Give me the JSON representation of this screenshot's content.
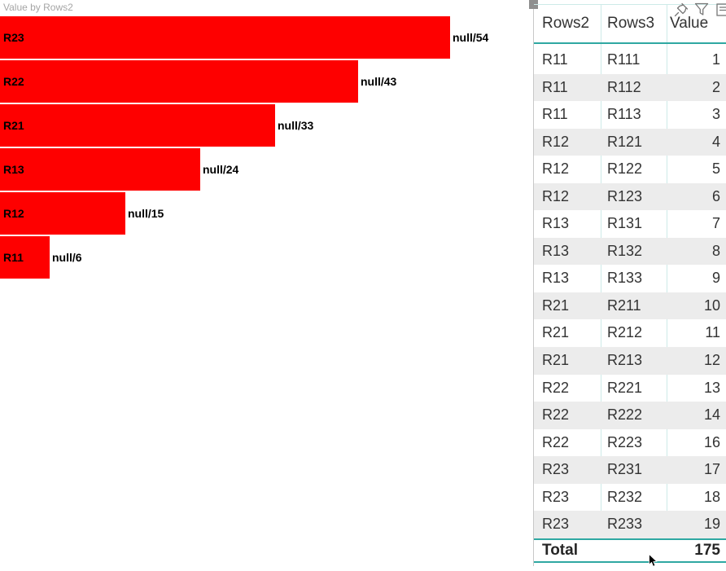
{
  "chart": {
    "title": "Value by Rows2"
  },
  "chart_data": {
    "type": "bar",
    "orientation": "horizontal",
    "title": "Value by Rows2",
    "categories": [
      "R23",
      "R22",
      "R21",
      "R13",
      "R12",
      "R11"
    ],
    "values": [
      54,
      43,
      33,
      24,
      15,
      6
    ],
    "data_labels": [
      "null/54",
      "null/43",
      "null/33",
      "null/24",
      "null/15",
      "null/6"
    ],
    "xlabel": "",
    "ylabel": "Rows2",
    "xlim": [
      0,
      64
    ],
    "grid": false,
    "legend": "none",
    "bar_color": "#FE0000"
  },
  "table": {
    "columns": [
      "Rows2",
      "Rows3",
      "Value"
    ],
    "rows": [
      [
        "R11",
        "R111",
        1
      ],
      [
        "R11",
        "R112",
        2
      ],
      [
        "R11",
        "R113",
        3
      ],
      [
        "R12",
        "R121",
        4
      ],
      [
        "R12",
        "R122",
        5
      ],
      [
        "R12",
        "R123",
        6
      ],
      [
        "R13",
        "R131",
        7
      ],
      [
        "R13",
        "R132",
        8
      ],
      [
        "R13",
        "R133",
        9
      ],
      [
        "R21",
        "R211",
        10
      ],
      [
        "R21",
        "R212",
        11
      ],
      [
        "R21",
        "R213",
        12
      ],
      [
        "R22",
        "R221",
        13
      ],
      [
        "R22",
        "R222",
        14
      ],
      [
        "R22",
        "R223",
        16
      ],
      [
        "R23",
        "R231",
        17
      ],
      [
        "R23",
        "R232",
        18
      ],
      [
        "R23",
        "R233",
        19
      ]
    ],
    "total_label": "Total",
    "total_value": 175
  },
  "visual_header": {
    "icons": [
      "pin-icon",
      "filter-icon",
      "options-icon-clipped"
    ]
  },
  "colors": {
    "bar_red": "#FE0000",
    "title_gray": "#A6A6A6",
    "text_dark": "#333333",
    "stripe_gray": "#ECECEC",
    "teal_strong": "#2FA8A2",
    "teal_light": "#CDEAE8",
    "icon_gray": "#777777",
    "border_gray": "#C8C8C8"
  }
}
